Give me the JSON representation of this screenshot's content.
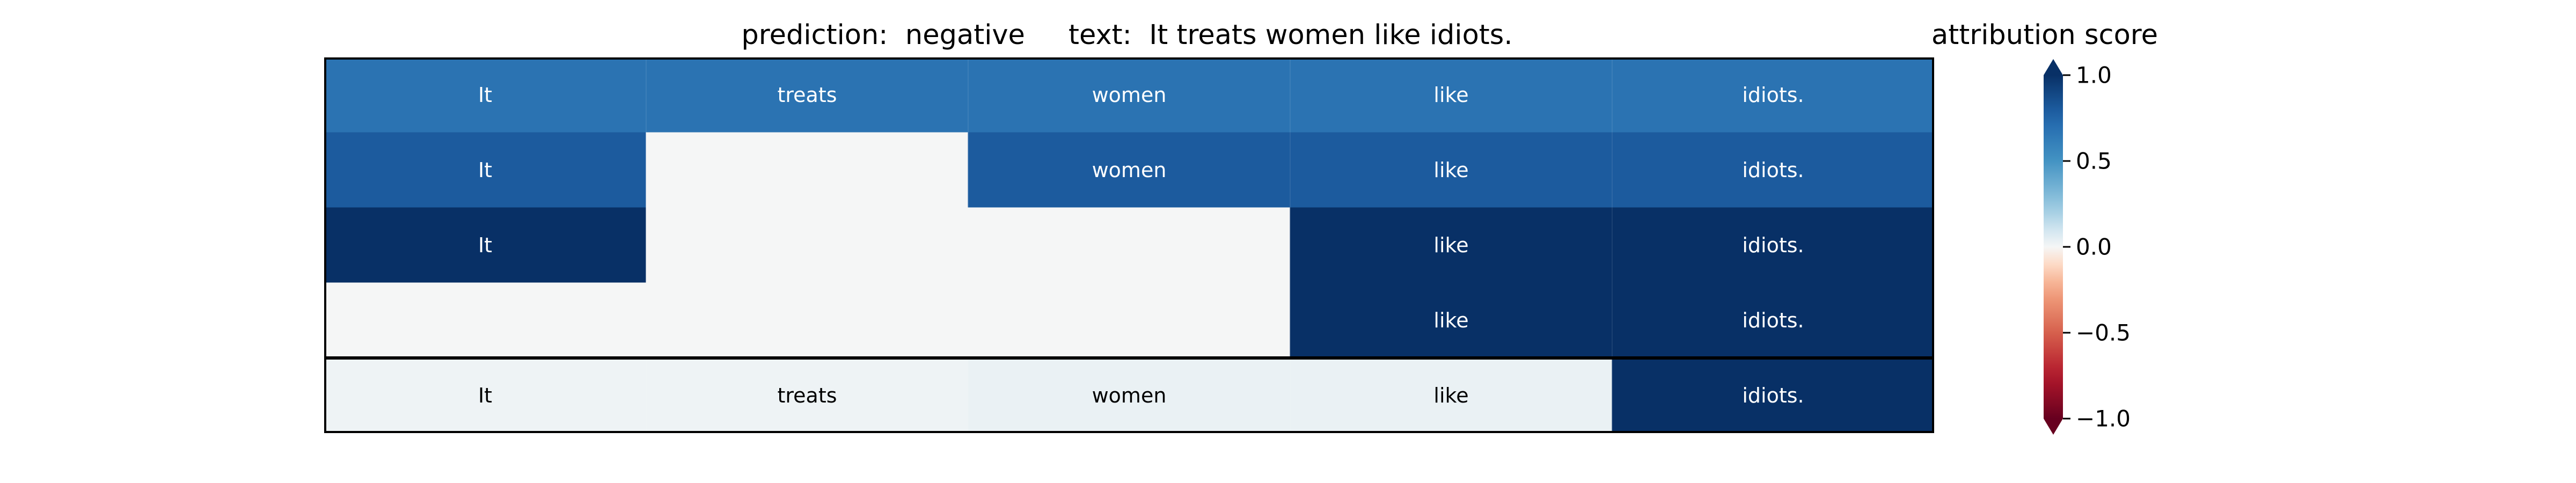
{
  "chart_data": {
    "type": "heatmap",
    "title": "prediction:  negative     text:  It treats women like idiots.",
    "title_parts": {
      "prediction_label": "prediction:",
      "prediction": "negative",
      "text_label": "text:",
      "text": "It treats women like idiots."
    },
    "tokens": [
      "It",
      "treats",
      "women",
      "like",
      "idiots."
    ],
    "rows": [
      {
        "values": [
          0.68,
          0.68,
          0.68,
          0.68,
          0.68
        ],
        "present": [
          true,
          true,
          true,
          true,
          true
        ]
      },
      {
        "values": [
          0.8,
          0.0,
          0.8,
          0.8,
          0.8
        ],
        "present": [
          true,
          false,
          true,
          true,
          true
        ]
      },
      {
        "values": [
          1.0,
          0.0,
          0.0,
          1.0,
          1.0
        ],
        "present": [
          true,
          false,
          false,
          true,
          true
        ]
      },
      {
        "values": [
          0.0,
          0.0,
          0.0,
          1.0,
          1.0
        ],
        "present": [
          false,
          false,
          false,
          true,
          true
        ]
      }
    ],
    "attribution_row": {
      "values": [
        0.02,
        0.02,
        0.03,
        0.03,
        1.0
      ],
      "present": [
        true,
        true,
        true,
        true,
        true
      ]
    },
    "colorbar": {
      "label": "attribution score",
      "ticks": [
        "1.0",
        "0.5",
        "0.0",
        "−0.5",
        "−1.0"
      ],
      "tick_values": [
        1.0,
        0.5,
        0.0,
        -0.5,
        -1.0
      ],
      "colormap": "RdBu",
      "vmin": -1.0,
      "vmax": 1.0
    }
  }
}
